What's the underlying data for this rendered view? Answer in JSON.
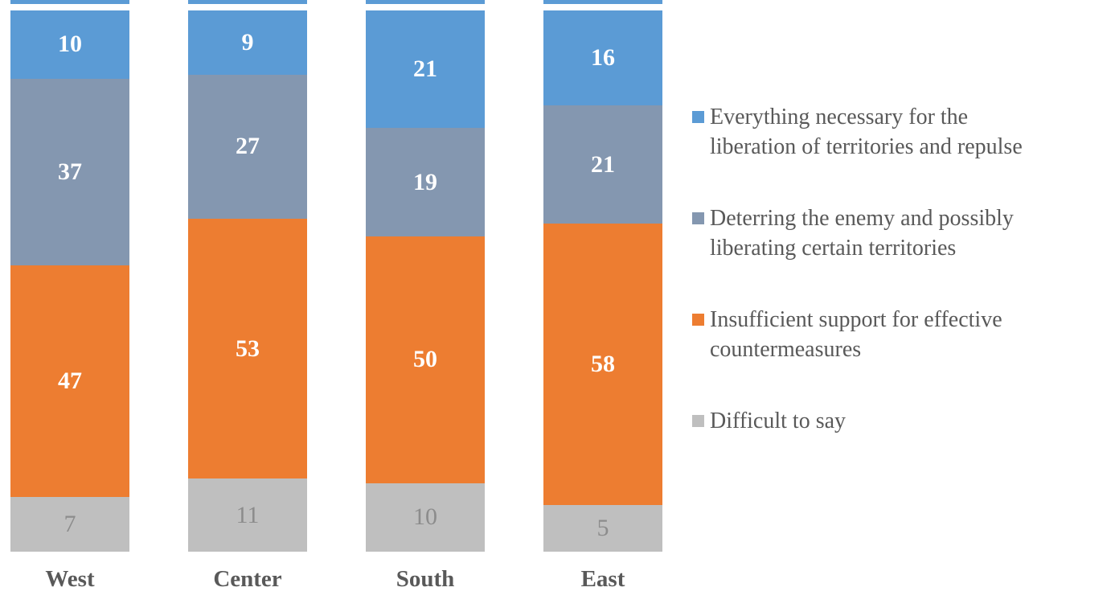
{
  "chart_data": {
    "type": "bar",
    "subtype": "stacked_column_100_percent",
    "title": "",
    "categories": [
      "West",
      "Center",
      "South",
      "East"
    ],
    "stack_order_top_to_bottom": true,
    "series": [
      {
        "name": "Everything necessary for the liberation of territories and repulse",
        "color": "#5B9BD5",
        "label_color": "#FFFFFF",
        "label_bold": true,
        "values": [
          10,
          9,
          21,
          16
        ]
      },
      {
        "name": "Deterring the enemy and possibly liberating certain territories",
        "color": "#8497B0",
        "label_color": "#FFFFFF",
        "label_bold": true,
        "values": [
          37,
          27,
          19,
          21
        ]
      },
      {
        "name": "Insufficient support for effective countermeasures",
        "color": "#ED7D31",
        "label_color": "#FFFFFF",
        "label_bold": true,
        "values": [
          47,
          53,
          50,
          58
        ]
      },
      {
        "name": "Difficult to say",
        "color": "#BFBFBF",
        "label_color": "#8C8C8C",
        "label_bold": false,
        "values": [
          7,
          11,
          10,
          5
        ]
      }
    ],
    "data_labels": "shown",
    "legend_position": "right",
    "axes_visible": false,
    "grid": false,
    "category_label_color": "#595959",
    "background": "#FFFFFF"
  },
  "legend": {
    "items": [
      {
        "label": "Everything necessary for the\nliberation of territories and repulse",
        "color": "#5B9BD5"
      },
      {
        "label": "Deterring the enemy and possibly\nliberating certain territories",
        "color": "#8497B0"
      },
      {
        "label": "Insufficient support for effective\ncountermeasures",
        "color": "#ED7D31"
      },
      {
        "label": "Difficult to say",
        "color": "#BFBFBF"
      }
    ]
  }
}
